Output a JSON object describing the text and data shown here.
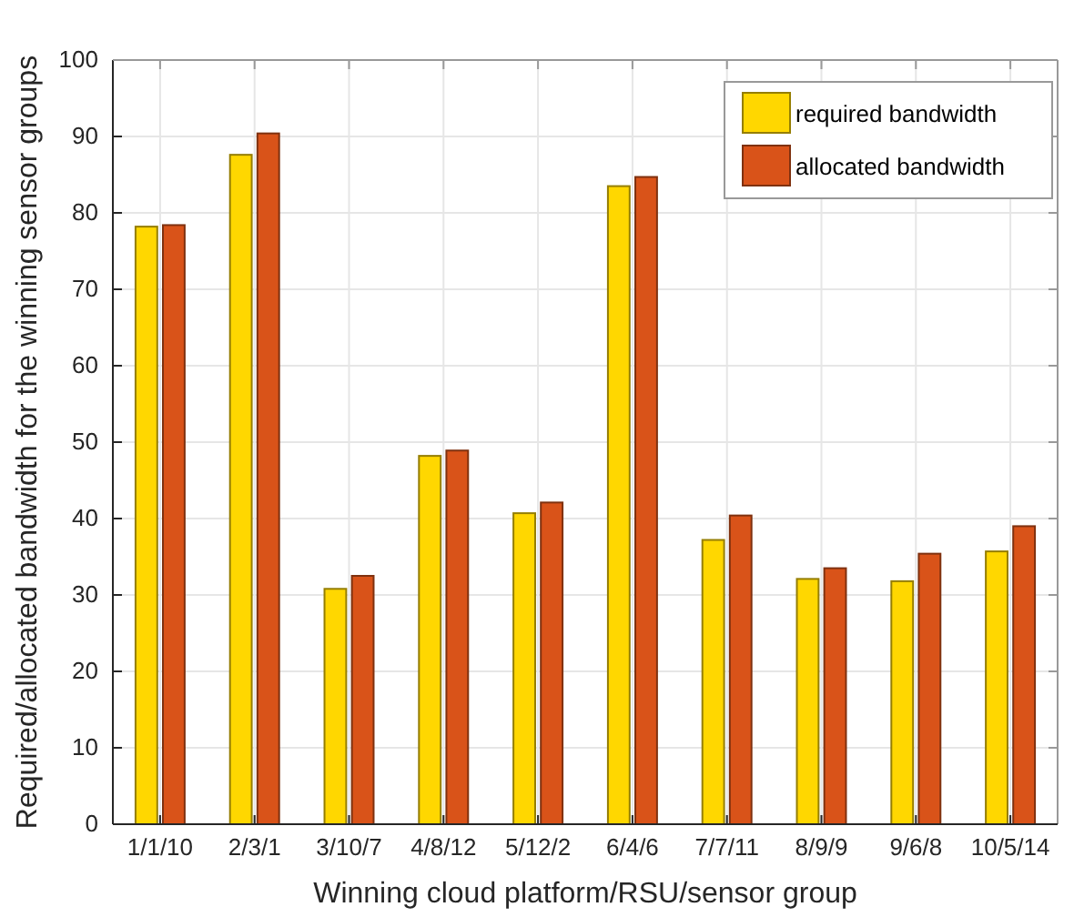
{
  "chart_data": {
    "type": "bar",
    "xlabel": "Winning cloud platform/RSU/sensor group",
    "ylabel": "Required/allocated  bandwidth for the winning sensor groups",
    "categories": [
      "1/1/10",
      "2/3/1",
      "3/10/7",
      "4/8/12",
      "5/12/2",
      "6/4/6",
      "7/7/11",
      "8/9/9",
      "9/6/8",
      "10/5/14"
    ],
    "series": [
      {
        "name": "required bandwidth",
        "color": "#ffd700",
        "values": [
          78.2,
          87.6,
          30.8,
          48.2,
          40.7,
          83.5,
          37.2,
          32.1,
          31.8,
          35.7
        ]
      },
      {
        "name": "allocated bandwidth",
        "color": "#d95319",
        "values": [
          78.4,
          90.4,
          32.5,
          48.9,
          42.1,
          84.7,
          40.4,
          33.5,
          35.4,
          39.0
        ]
      }
    ],
    "ylim": [
      0,
      100
    ],
    "yticks": [
      0,
      10,
      20,
      30,
      40,
      50,
      60,
      70,
      80,
      90,
      100
    ],
    "grid": true,
    "legend": "top right"
  }
}
